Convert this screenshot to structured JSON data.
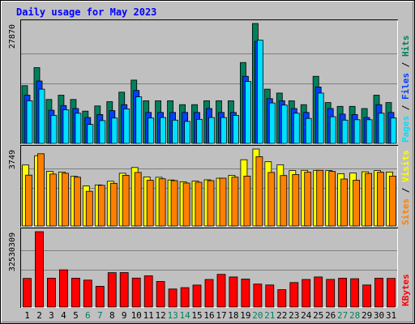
{
  "chart_data": {
    "type": "bar",
    "title": "Daily usage for May 2023",
    "categories": [
      "1",
      "2",
      "3",
      "4",
      "5",
      "6",
      "7",
      "8",
      "9",
      "10",
      "11",
      "12",
      "13",
      "14",
      "15",
      "16",
      "17",
      "18",
      "19",
      "20",
      "21",
      "22",
      "23",
      "24",
      "25",
      "26",
      "27",
      "28",
      "29",
      "30",
      "31"
    ],
    "weekend_days": [
      6,
      7,
      13,
      14,
      20,
      21,
      27,
      28
    ],
    "colors": {
      "hits": "#00805c",
      "files": "#0040ff",
      "pages": "#00e0ff",
      "visits": "#ffff00",
      "sites": "#ff8000",
      "kbytes": "#ff0000",
      "weekday_label": "#000000",
      "weekend_label": "#00805c",
      "title": "#0000ff",
      "background": "#c0c0c0",
      "plot": "#c0c0c0"
    },
    "panels": [
      {
        "id": "requests",
        "max_label": "27870",
        "ylim": [
          0,
          27870
        ],
        "legend": [
          "Pages",
          "Files",
          "Hits"
        ],
        "series": [
          {
            "name": "Hits",
            "values": [
              13400,
              17600,
              10200,
              11200,
              10200,
              7500,
              8700,
              9700,
              11900,
              14700,
              9900,
              9900,
              9900,
              9000,
              9000,
              9900,
              9900,
              9900,
              18800,
              27870,
              12600,
              11700,
              9900,
              9000,
              15600,
              9500,
              8600,
              8600,
              8100,
              11200,
              9500
            ]
          },
          {
            "name": "Files",
            "values": [
              11200,
              14500,
              7700,
              8800,
              8100,
              6000,
              6700,
              7600,
              9000,
              12300,
              7200,
              7200,
              7200,
              7200,
              7200,
              8100,
              7200,
              7200,
              15600,
              23700,
              10400,
              9900,
              8100,
              7200,
              13100,
              8100,
              6800,
              6700,
              6000,
              9000,
              7200
            ]
          },
          {
            "name": "Pages",
            "values": [
              9900,
              12600,
              6500,
              7800,
              7000,
              4400,
              5300,
              5900,
              8000,
              10800,
              5900,
              6000,
              5400,
              5100,
              5600,
              6000,
              6000,
              6500,
              14400,
              24000,
              9400,
              8900,
              7000,
              5800,
              11700,
              6200,
              5400,
              5500,
              5500,
              7000,
              5900
            ]
          }
        ]
      },
      {
        "id": "visits",
        "max_label": "3749",
        "ylim": [
          0,
          3749
        ],
        "legend": [
          "Sites",
          "Visits"
        ],
        "series": [
          {
            "name": "Visits",
            "values": [
              2970,
              3420,
              2660,
              2630,
              2420,
              1950,
              2000,
              2180,
              2570,
              2850,
              2390,
              2370,
              2240,
              2150,
              2190,
              2250,
              2330,
              2470,
              3230,
              3749,
              3130,
              2980,
              2700,
              2710,
              2710,
              2700,
              2550,
              2580,
              2640,
              2700,
              2630
            ]
          },
          {
            "name": "Sites",
            "values": [
              2480,
              3520,
              2530,
              2570,
              2380,
              1690,
              1980,
              2080,
              2470,
              2610,
              2230,
              2300,
              2210,
              2090,
              2130,
              2210,
              2330,
              2380,
              2430,
              3380,
              2610,
              2460,
              2510,
              2620,
              2710,
              2660,
              2290,
              2230,
              2560,
              2620,
              2430
            ]
          }
        ]
      },
      {
        "id": "kbytes",
        "max_label": "32530309",
        "ylim": [
          0,
          32530309
        ],
        "legend": [
          "KBytes"
        ],
        "series": [
          {
            "name": "KBytes",
            "values": [
              12350000,
              32530309,
              12460000,
              16070000,
              12460000,
              11630000,
              8970000,
              14830000,
              14850000,
              12500000,
              13470000,
              11020000,
              7750000,
              8350000,
              9480000,
              11910000,
              14110000,
              12960000,
              12070000,
              9890000,
              9530000,
              7500000,
              10560000,
              11900000,
              12960000,
              11920000,
              12460000,
              12200000,
              9520000,
              12400000,
              12350000
            ]
          }
        ]
      }
    ]
  }
}
